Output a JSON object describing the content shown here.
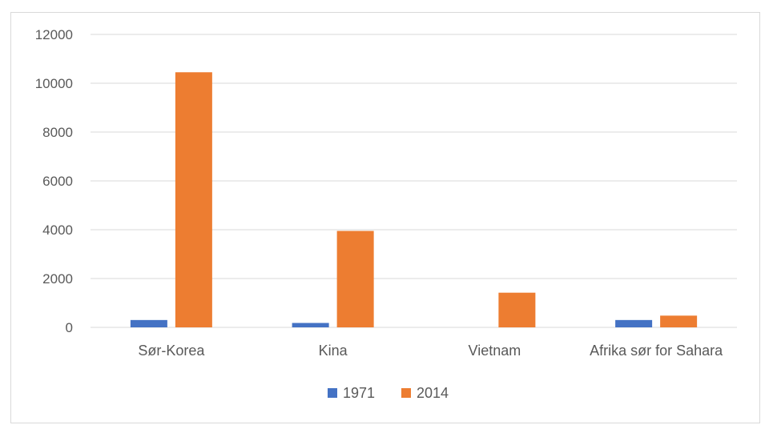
{
  "chart_data": {
    "type": "bar",
    "categories": [
      "Sør-Korea",
      "Kina",
      "Vietnam",
      "Afrika sør for Sahara"
    ],
    "series": [
      {
        "name": "1971",
        "color": "#4472c4",
        "values": [
          300,
          180,
          0,
          300
        ]
      },
      {
        "name": "2014",
        "color": "#ed7d31",
        "values": [
          10450,
          3950,
          1420,
          480
        ]
      }
    ],
    "title": "",
    "xlabel": "",
    "ylabel": "",
    "ylim": [
      0,
      12000
    ],
    "yticks": [
      "0",
      "2000",
      "4000",
      "6000",
      "8000",
      "10000",
      "12000"
    ],
    "grid": true,
    "legend": "bottom"
  }
}
